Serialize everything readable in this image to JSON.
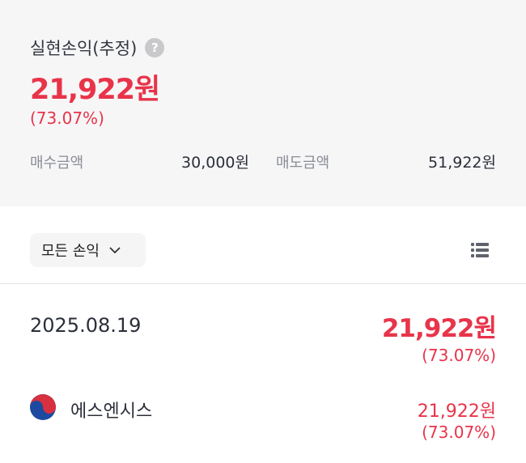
{
  "summary": {
    "title": "실현손익(추정)",
    "help_icon": "question-circle-icon",
    "profit": "21,922원",
    "rate": "(73.07%)",
    "buy_label": "매수금액",
    "buy_value": "30,000원",
    "sell_label": "매도금액",
    "sell_value": "51,922원"
  },
  "filter": {
    "label": "모든 손익",
    "icon": "chevron-down-icon",
    "view_icon": "list-icon"
  },
  "entries": [
    {
      "date": "2025.08.19",
      "profit": "21,922원",
      "rate": "(73.07%)",
      "items": [
        {
          "flag_icon": "korea-flag-icon",
          "name": "에스엔시스",
          "profit": "21,922원",
          "rate": "(73.07%)"
        }
      ]
    }
  ],
  "colors": {
    "profit": "#e8344a",
    "panel": "#f6f6f7"
  }
}
